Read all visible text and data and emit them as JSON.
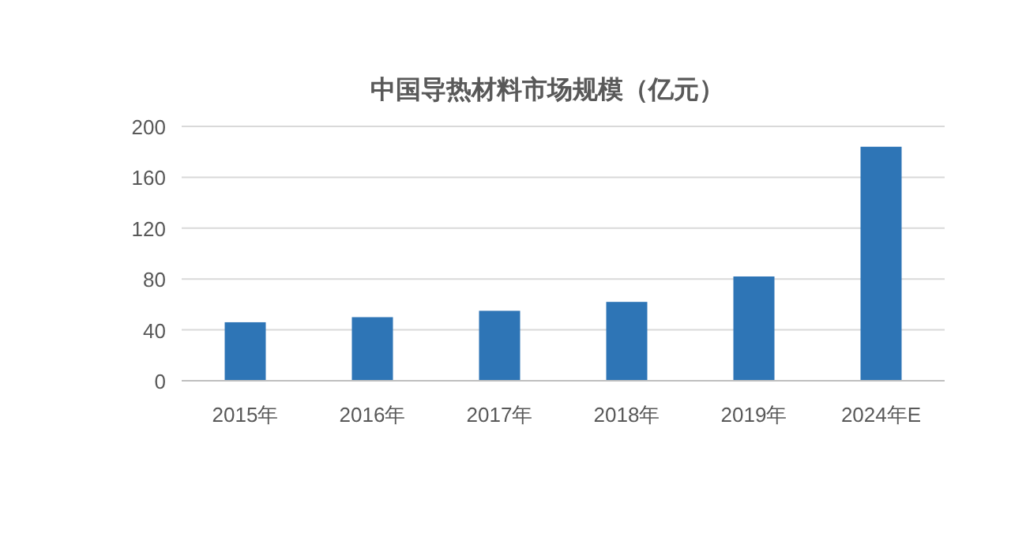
{
  "chart_data": {
    "type": "bar",
    "title": "中国导热材料市场规模（亿元）",
    "categories": [
      "2015年",
      "2016年",
      "2017年",
      "2018年",
      "2019年",
      "2024年E"
    ],
    "values": [
      46,
      50,
      55,
      62,
      82,
      184
    ],
    "color": "#2e75b6",
    "ylim": [
      0,
      200
    ],
    "yticks": [
      0,
      40,
      80,
      120,
      160,
      200
    ],
    "grid": "y"
  }
}
